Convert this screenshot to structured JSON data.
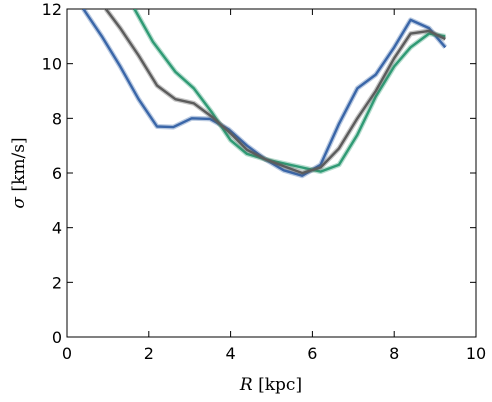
{
  "chart_data": {
    "type": "line",
    "xlabel_symbol": "R",
    "xlabel_unit": "[kpc]",
    "ylabel_symbol": "σ",
    "ylabel_unit": "[km/s]",
    "xlim": [
      0,
      10
    ],
    "ylim": [
      0,
      12
    ],
    "xticks": [
      0,
      2,
      4,
      6,
      8,
      10
    ],
    "yticks": [
      0,
      2,
      4,
      6,
      8,
      10,
      12
    ],
    "grid": false,
    "legend": "none",
    "series": [
      {
        "color": "#3a66a8",
        "x": [
          0.4,
          0.85,
          1.3,
          1.75,
          2.2,
          2.6,
          3.05,
          3.5,
          3.95,
          4.4,
          4.85,
          5.3,
          5.75,
          6.2,
          6.65,
          7.1,
          7.55,
          8.0,
          8.4,
          8.85,
          9.25
        ],
        "y": [
          12.0,
          11.0,
          9.9,
          8.7,
          7.7,
          7.68,
          8.0,
          7.98,
          7.6,
          7.0,
          6.5,
          6.1,
          5.9,
          6.3,
          7.8,
          9.1,
          9.6,
          10.6,
          11.6,
          11.3,
          10.6
        ]
      },
      {
        "color": "#2f9a74",
        "x": [
          1.65,
          2.1,
          2.65,
          3.1,
          3.55,
          4.0,
          4.4,
          4.85,
          5.3,
          5.75,
          6.2,
          6.65,
          7.1,
          7.55,
          8.0,
          8.4,
          8.85,
          9.25
        ],
        "y": [
          12.0,
          10.8,
          9.7,
          9.1,
          8.2,
          7.2,
          6.7,
          6.5,
          6.35,
          6.2,
          6.05,
          6.3,
          7.4,
          8.8,
          9.9,
          10.6,
          11.1,
          11.0
        ]
      },
      {
        "color": "#5c5c5c",
        "x": [
          0.95,
          1.3,
          1.75,
          2.2,
          2.65,
          3.1,
          3.55,
          4.0,
          4.4,
          4.85,
          5.3,
          5.75,
          6.2,
          6.65,
          7.1,
          7.55,
          8.0,
          8.4,
          8.85,
          9.25
        ],
        "y": [
          12.0,
          11.3,
          10.3,
          9.2,
          8.7,
          8.55,
          8.05,
          7.45,
          6.85,
          6.5,
          6.25,
          6.0,
          6.2,
          6.9,
          8.0,
          9.0,
          10.2,
          11.1,
          11.2,
          10.9
        ]
      }
    ]
  }
}
